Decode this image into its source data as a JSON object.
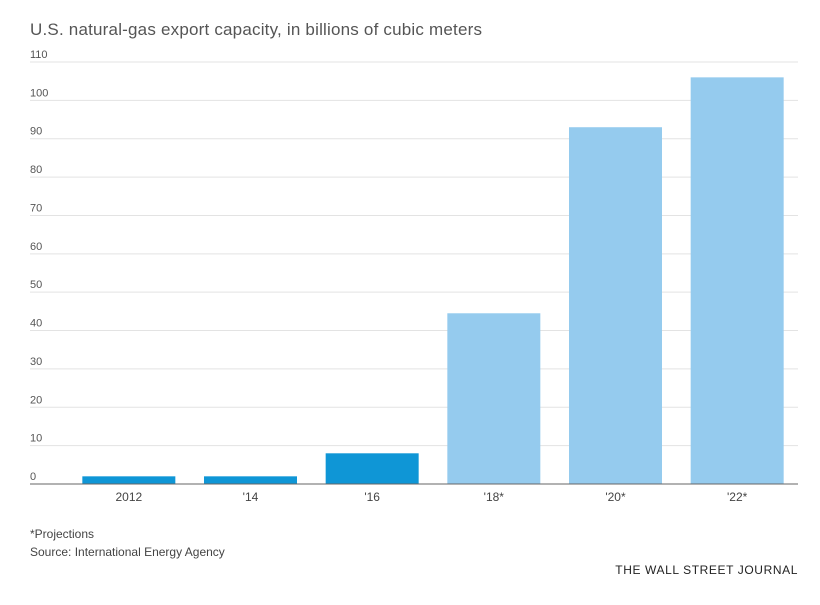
{
  "chart_data": {
    "type": "bar",
    "title": "U.S. natural-gas export capacity, in billions of cubic meters",
    "xlabel": "",
    "ylabel": "",
    "categories": [
      "2012",
      "'14",
      "'16",
      "'18*",
      "'20*",
      "'22*"
    ],
    "values": [
      2,
      2,
      8,
      44.5,
      93,
      106
    ],
    "projected": [
      false,
      false,
      false,
      true,
      true,
      true
    ],
    "ylim": [
      0,
      110
    ],
    "yticks": [
      0,
      10,
      20,
      30,
      40,
      50,
      60,
      70,
      80,
      90,
      100,
      110
    ],
    "grid": true,
    "colors": {
      "actual": "#0f96d6",
      "projected": "#95cbee"
    }
  },
  "notes": {
    "projections": "*Projections",
    "source": "Source: International Energy Agency"
  },
  "brand": "THE WALL STREET JOURNAL"
}
